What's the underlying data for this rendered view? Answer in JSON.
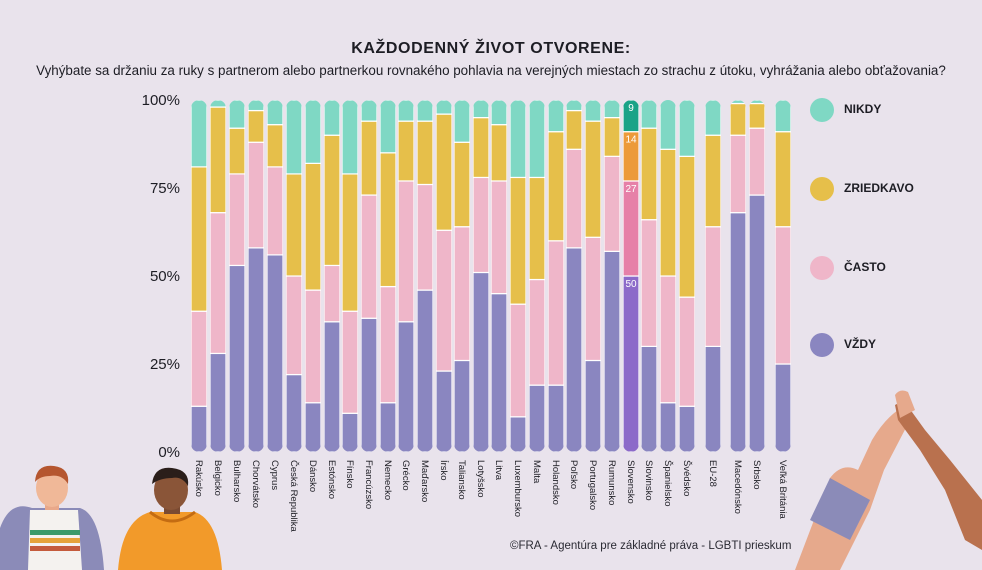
{
  "header": {
    "title": "KAŽDODENNÝ ŽIVOT OTVORENE:",
    "subtitle": "Vyhýbate sa držaniu za ruky s partnerom alebo partnerkou rovnakého pohlavia na verejných miestach zo strachu z útoku, vyhrážania alebo obťažovania?"
  },
  "legend": {
    "items": [
      {
        "label": "NIKDY",
        "color": "#7fd8c4"
      },
      {
        "label": "ZRIEDKAVO",
        "color": "#e6bf4a"
      },
      {
        "label": "ČASTO",
        "color": "#efb6c9"
      },
      {
        "label": "VŽDY",
        "color": "#8a86c0"
      }
    ]
  },
  "credit": "©FRA - Agentúra pre základné práva - LGBTI prieskum",
  "chart_data": {
    "type": "bar",
    "stacked": true,
    "ylim": [
      0,
      100
    ],
    "yticks": [
      "0%",
      "25%",
      "50%",
      "75%",
      "100%"
    ],
    "series_order": [
      "VŽDY",
      "ČASTO",
      "ZRIEDKAVO",
      "NIKDY"
    ],
    "categories": [
      "Rakúsko",
      "Belgicko",
      "Bulharsko",
      "Chorvátsko",
      "Cyprus",
      "Česká Republika",
      "Dánsko",
      "Estónsko",
      "Fínsko",
      "Francúzsko",
      "Nemecko",
      "Grécko",
      "Maďarsko",
      "Írsko",
      "Taliansko",
      "Lotyšsko",
      "Litva",
      "Luxembursko",
      "Malta",
      "Holandsko",
      "Poľsko",
      "Portugalsko",
      "Rumunsko",
      "Slovensko",
      "Slovinsko",
      "Španielsko",
      "Švédsko",
      "EU-28",
      "Macedónsko",
      "Srbsko",
      "Veľká Británia"
    ],
    "series": [
      {
        "name": "VŽDY",
        "color": "#8a86c0",
        "values": [
          13,
          28,
          53,
          58,
          56,
          22,
          14,
          37,
          11,
          38,
          14,
          37,
          46,
          23,
          26,
          51,
          45,
          10,
          19,
          19,
          58,
          26,
          57,
          50,
          30,
          14,
          13,
          30,
          68,
          73,
          25
        ]
      },
      {
        "name": "ČASTO",
        "color": "#efb6c9",
        "values": [
          27,
          40,
          26,
          30,
          25,
          28,
          32,
          16,
          29,
          35,
          33,
          40,
          30,
          40,
          38,
          27,
          32,
          32,
          30,
          41,
          28,
          35,
          27,
          27,
          36,
          36,
          31,
          34,
          22,
          19,
          39
        ]
      },
      {
        "name": "ZRIEDKAVO",
        "color": "#e6bf4a",
        "values": [
          41,
          30,
          13,
          9,
          12,
          29,
          36,
          37,
          39,
          21,
          38,
          17,
          18,
          33,
          24,
          17,
          16,
          36,
          29,
          31,
          11,
          33,
          11,
          14,
          26,
          36,
          40,
          26,
          9,
          7,
          27
        ]
      },
      {
        "name": "NIKDY",
        "color": "#7fd8c4",
        "values": [
          19,
          2,
          8,
          3,
          7,
          21,
          18,
          10,
          21,
          6,
          15,
          6,
          6,
          4,
          12,
          5,
          7,
          22,
          22,
          9,
          3,
          6,
          5,
          9,
          8,
          15,
          16,
          10,
          1,
          1,
          9
        ]
      }
    ],
    "data_labels": {
      "category": "Slovensko",
      "values": [
        50,
        27,
        14,
        9
      ]
    },
    "legend_position": "right",
    "grid": false
  }
}
